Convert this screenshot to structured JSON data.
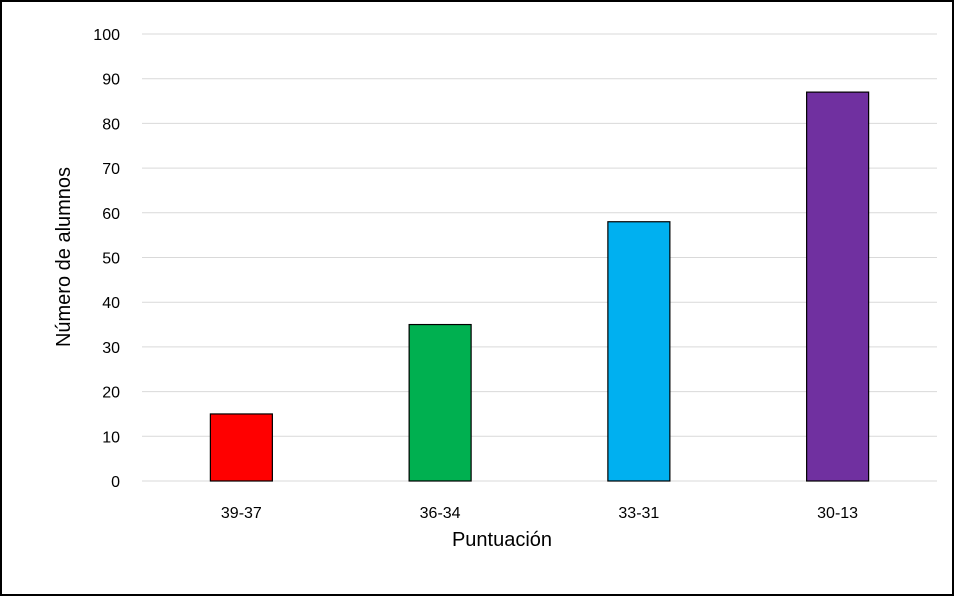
{
  "chart_data": {
    "type": "bar",
    "title": "",
    "xlabel": "Puntuación",
    "ylabel": "Número de alumnos",
    "categories": [
      "39-37",
      "36-34",
      "33-31",
      "30-13"
    ],
    "values": [
      15,
      35,
      58,
      87
    ],
    "bar_colors": [
      "#ff0000",
      "#00b050",
      "#00b0f0",
      "#7030a0"
    ],
    "ylim": [
      0,
      100
    ],
    "yticks": [
      0,
      10,
      20,
      30,
      40,
      50,
      60,
      70,
      80,
      90,
      100
    ],
    "grid": true,
    "legend": "none"
  }
}
